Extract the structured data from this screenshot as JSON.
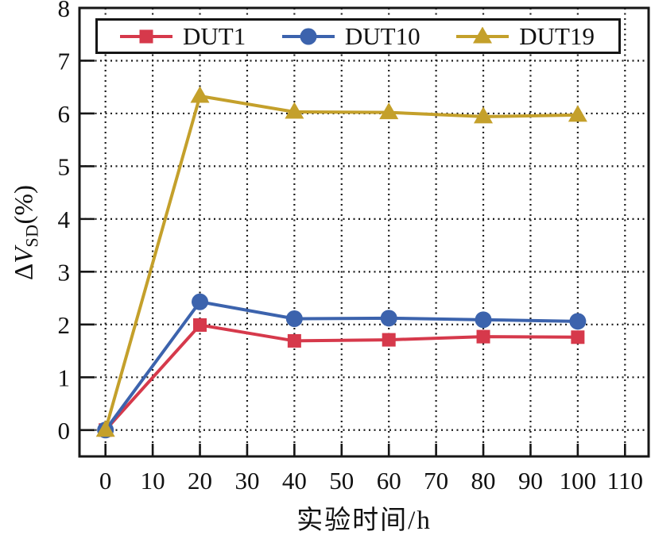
{
  "chart_data": {
    "type": "line",
    "x": [
      0,
      20,
      40,
      60,
      80,
      100
    ],
    "series": [
      {
        "name": "DUT1",
        "marker": "square",
        "color": "#d6394b",
        "values": [
          0,
          1.99,
          1.69,
          1.71,
          1.77,
          1.76
        ]
      },
      {
        "name": "DUT10",
        "marker": "circle",
        "color": "#3c63ad",
        "values": [
          0,
          2.43,
          2.11,
          2.12,
          2.09,
          2.06
        ]
      },
      {
        "name": "DUT19",
        "marker": "triangle",
        "color": "#c4a02b",
        "values": [
          0,
          6.33,
          6.03,
          6.02,
          5.94,
          5.97
        ]
      }
    ],
    "title": "",
    "xlabel": "实验时间/h",
    "ylabel": {
      "delta": "Δ",
      "symbol": "V",
      "subscript": "SD",
      "unit": "(%)"
    },
    "xticks": [
      0,
      10,
      20,
      30,
      40,
      50,
      60,
      70,
      80,
      90,
      100,
      110
    ],
    "yticks": [
      0,
      1,
      2,
      3,
      4,
      5,
      6,
      7,
      8
    ],
    "xlim": [
      -5.5,
      115
    ],
    "ylim": [
      -0.5,
      8
    ],
    "grid": true,
    "grid_style": "dotted",
    "legend_position": "top-inside",
    "axis_color": "#161616",
    "tick_label_color": "#111111"
  }
}
